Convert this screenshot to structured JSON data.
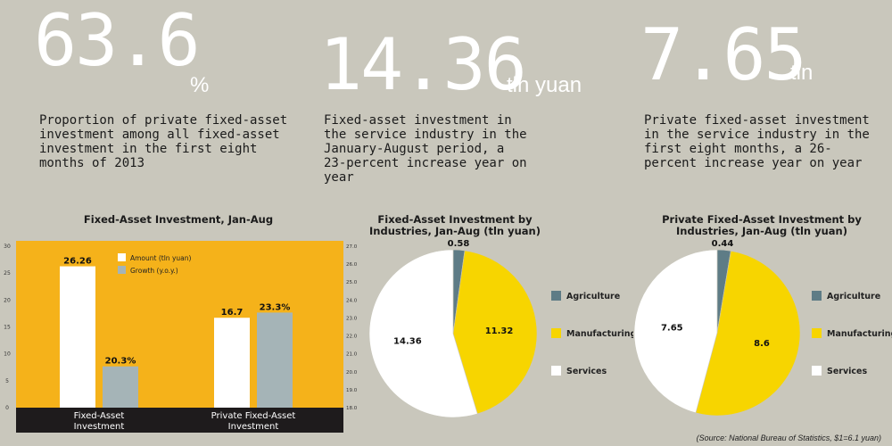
{
  "stats": [
    {
      "value": "63.6",
      "unit": "%",
      "description": "Proportion of private fixed-asset investment among all fixed-asset investment in the first eight months of 2013"
    },
    {
      "value": "14.36",
      "unit": "tln yuan",
      "description": "Fixed-asset investment in the service industry in the January-August period, a 23-percent increase year on year"
    },
    {
      "value": "7.65",
      "unit": "tln",
      "description": "Private fixed-asset investment in the service industry in the first eight months, a 26-percent increase year on year"
    }
  ],
  "chart_data": [
    {
      "type": "bar",
      "title": "Fixed-Asset Investment, Jan-Aug",
      "categories": [
        "Fixed-Asset Investment",
        "Private Fixed-Asset Investment"
      ],
      "series": [
        {
          "name": "Amount (tln yuan)",
          "values": [
            26.26,
            16.7
          ],
          "labels": [
            "26.26",
            "16.7"
          ],
          "axis": "left",
          "color": "#ffffff"
        },
        {
          "name": "Growth (y.o.y.)",
          "values": [
            20.3,
            23.3
          ],
          "labels": [
            "20.3%",
            "23.3%"
          ],
          "axis": "right",
          "color": "#a5b4b7"
        }
      ],
      "ylim": [
        0,
        30
      ],
      "yticks": [
        "0",
        "5",
        "10",
        "15",
        "20",
        "25",
        "30"
      ],
      "y2lim": [
        18.0,
        27.0
      ],
      "y2ticks": [
        "18.0%",
        "19.0%",
        "20.0%",
        "21.0%",
        "22.0%",
        "23.0%",
        "24.0%",
        "25.0%",
        "26.0%",
        "27.0%"
      ],
      "legend": "top-left",
      "grid": false,
      "background": "#f5b21a"
    },
    {
      "type": "pie",
      "title": "Fixed-Asset Investment by Industries, Jan-Aug (tln yuan)",
      "categories": [
        "Agriculture",
        "Manufacturing",
        "Services"
      ],
      "values": [
        0.58,
        11.32,
        14.36
      ],
      "labels": [
        "0.58",
        "11.32",
        "14.36"
      ],
      "colors": [
        "#5e7c86",
        "#f7d500",
        "#ffffff"
      ],
      "legend": "right"
    },
    {
      "type": "pie",
      "title": "Private Fixed-Asset Investment by Industries, Jan-Aug (tln yuan)",
      "categories": [
        "Agriculture",
        "Manufacturing",
        "Services"
      ],
      "values": [
        0.44,
        8.6,
        7.65
      ],
      "labels": [
        "0.44",
        "8.6",
        "7.65"
      ],
      "colors": [
        "#5e7c86",
        "#f7d500",
        "#ffffff"
      ],
      "legend": "right"
    }
  ],
  "source": "(Source: National Bureau of Statistics, $1=6.1 yuan)"
}
